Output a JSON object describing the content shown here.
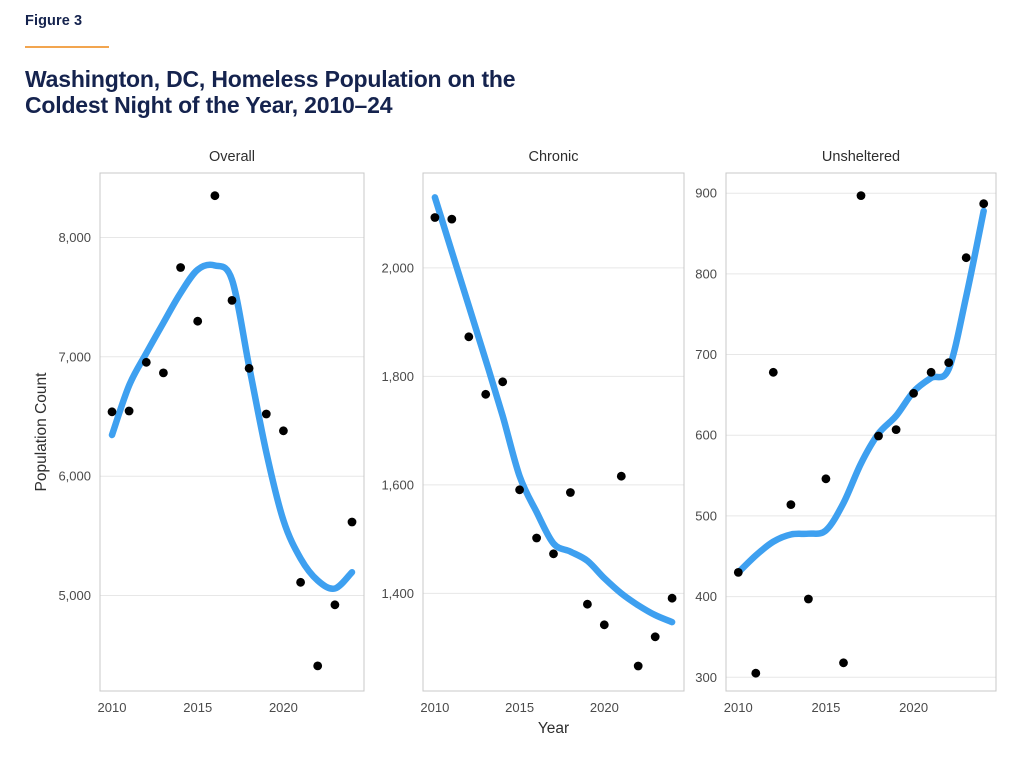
{
  "figure": {
    "label": "Figure 3",
    "title_line1": "Washington, DC, Homeless Population on the",
    "title_line2": "Coldest Night of the Year, 2010–24"
  },
  "chart_data": {
    "type": "scatter",
    "description": "Three-panel faceted scatter plot with loess smooth trend lines",
    "xlabel": "Year",
    "ylabel": "Population Count",
    "years": [
      2010,
      2011,
      2012,
      2013,
      2014,
      2015,
      2016,
      2017,
      2018,
      2019,
      2020,
      2021,
      2022,
      2023,
      2024
    ],
    "x_ticks": [
      2010,
      2015,
      2020
    ],
    "x_tick_labels": [
      "2010",
      "2015",
      "2020"
    ],
    "x_domain": [
      2009.3,
      2024.7
    ],
    "grid": "horizontal-major-only",
    "legend": "none",
    "colors": {
      "point": "#000000",
      "smooth_line": "#3EA0F0",
      "gridline": "#e7e7e7",
      "panel_border": "#c8c8c8",
      "tick_text": "#4a4a4a",
      "axis_title_text": "#2e2e2e",
      "panel_title_text": "#2e2e2e"
    },
    "panels": [
      {
        "title": "Overall",
        "ylim": [
          4200,
          8540
        ],
        "y_ticks": [
          5000,
          6000,
          7000,
          8000
        ],
        "y_tick_labels": [
          "5,000",
          "6,000",
          "7,000",
          "8,000"
        ],
        "points": [
          6539,
          6546,
          6954,
          6865,
          7748,
          7298,
          8350,
          7473,
          6904,
          6521,
          6380,
          5111,
          4410,
          4922,
          5616
        ],
        "smooth_trend": [
          6345,
          6760,
          7030,
          7285,
          7535,
          7730,
          7765,
          7645,
          6920,
          6200,
          5630,
          5310,
          5126,
          5059,
          5195
        ]
      },
      {
        "title": "Chronic",
        "ylim": [
          1220,
          2175
        ],
        "y_ticks": [
          1400,
          1600,
          1800,
          2000
        ],
        "y_tick_labels": [
          "1,400",
          "1,600",
          "1,800",
          "2,000"
        ],
        "points": [
          2093,
          2090,
          1873,
          1767,
          1790,
          1591,
          1502,
          1473,
          1586,
          1380,
          1342,
          1616,
          1266,
          1320,
          1391
        ],
        "smooth_trend": [
          2130,
          2030,
          1930,
          1830,
          1727,
          1616,
          1550,
          1492,
          1477,
          1460,
          1428,
          1400,
          1378,
          1360,
          1347
        ]
      },
      {
        "title": "Unsheltered",
        "ylim": [
          283,
          925
        ],
        "y_ticks": [
          300,
          400,
          500,
          600,
          700,
          800,
          900
        ],
        "y_tick_labels": [
          "300",
          "400",
          "500",
          "600",
          "700",
          "800",
          "900"
        ],
        "points": [
          430,
          305,
          678,
          514,
          397,
          546,
          318,
          897,
          599,
          607,
          652,
          678,
          690,
          820,
          887
        ],
        "smooth_trend": [
          430,
          451,
          468,
          477,
          478,
          482,
          516,
          565,
          602,
          624,
          654,
          671,
          682,
          772,
          878
        ]
      }
    ]
  }
}
